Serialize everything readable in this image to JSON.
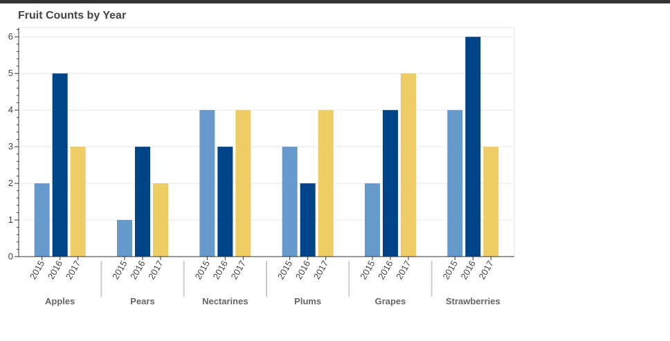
{
  "chart_data": {
    "type": "bar",
    "title": "Fruit Counts by Year",
    "categories": [
      "Apples",
      "Pears",
      "Nectarines",
      "Plums",
      "Grapes",
      "Strawberries"
    ],
    "series": [
      {
        "label": "2015",
        "color": "#6699cc",
        "values": [
          2,
          1,
          4,
          3,
          2,
          4
        ]
      },
      {
        "label": "2016",
        "color": "#004488",
        "values": [
          5,
          3,
          3,
          2,
          4,
          6
        ]
      },
      {
        "label": "2017",
        "color": "#eecc66",
        "values": [
          3,
          2,
          4,
          4,
          5,
          3
        ]
      }
    ],
    "ylim": [
      0,
      6.25
    ],
    "yticks": [
      0,
      1,
      2,
      3,
      4,
      5,
      6
    ],
    "grid": true,
    "legend": "none"
  }
}
